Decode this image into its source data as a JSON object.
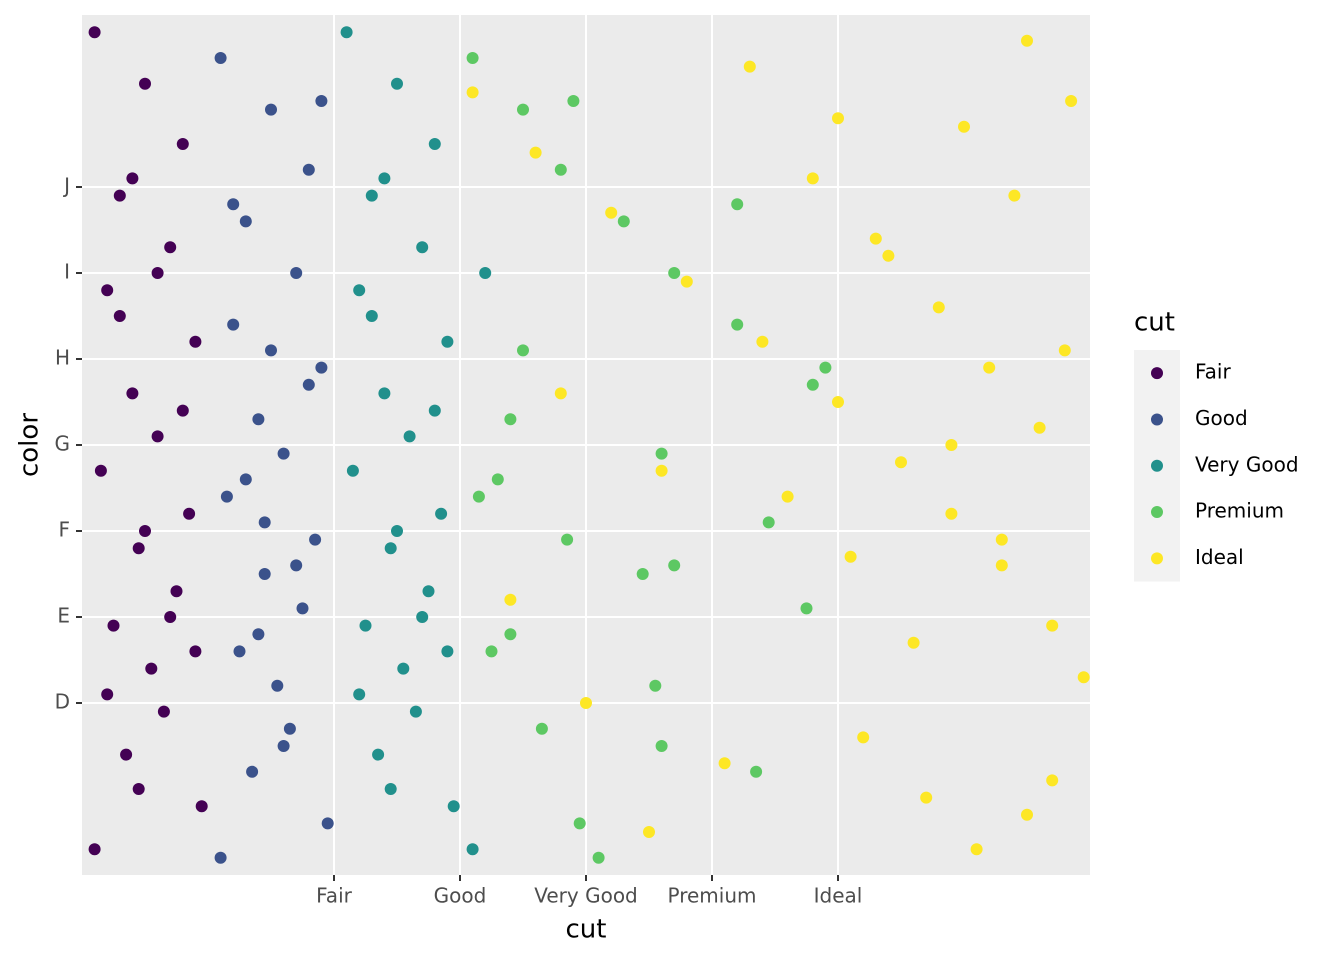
{
  "chart_data": {
    "type": "scatter",
    "x_label": "cut",
    "y_label": "color",
    "legend_title": "cut",
    "xlim": [
      -1,
      7
    ],
    "ylim": [
      -1,
      9
    ],
    "xticks": [
      {
        "value": 1,
        "label": "Fair"
      },
      {
        "value": 2,
        "label": "Good"
      },
      {
        "value": 3,
        "label": "Very Good"
      },
      {
        "value": 4,
        "label": "Premium"
      },
      {
        "value": 5,
        "label": "Ideal"
      }
    ],
    "yticks": [
      {
        "value": 1,
        "label": "D"
      },
      {
        "value": 2,
        "label": "E"
      },
      {
        "value": 3,
        "label": "F"
      },
      {
        "value": 4,
        "label": "G"
      },
      {
        "value": 5,
        "label": "H"
      },
      {
        "value": 6,
        "label": "I"
      },
      {
        "value": 7,
        "label": "J"
      }
    ],
    "grid": true,
    "legend": "right",
    "series": [
      {
        "name": "Fair",
        "color": "#440154",
        "x": [
          -0.9,
          -0.5,
          -0.2,
          -0.7,
          -0.3,
          -0.8,
          -0.1,
          -0.6,
          -0.4,
          -0.85,
          -0.15,
          -0.55,
          -0.25,
          -0.75,
          -0.45,
          -0.35,
          -0.65,
          -0.05,
          -0.9,
          -0.5,
          -0.2,
          -0.7,
          -0.3,
          -0.8,
          -0.6,
          -0.4,
          -0.1,
          -0.55
        ],
        "y": [
          8.8,
          8.2,
          7.5,
          6.9,
          6.3,
          5.8,
          5.2,
          4.6,
          4.1,
          3.7,
          3.2,
          2.8,
          2.3,
          1.9,
          1.4,
          0.9,
          0.4,
          -0.2,
          -0.7,
          3.0,
          4.4,
          5.5,
          2.0,
          1.1,
          7.1,
          6.0,
          1.6,
          0.0
        ]
      },
      {
        "name": "Good",
        "color": "#3b528b",
        "x": [
          0.1,
          0.5,
          0.8,
          0.3,
          0.7,
          0.2,
          0.9,
          0.4,
          0.6,
          0.15,
          0.85,
          0.45,
          0.75,
          0.25,
          0.55,
          0.65,
          0.35,
          0.95,
          0.1,
          0.5,
          0.8,
          0.3,
          0.7,
          0.2,
          0.4,
          0.6,
          0.9,
          0.45
        ],
        "y": [
          8.5,
          7.9,
          7.2,
          6.6,
          6.0,
          5.4,
          4.9,
          4.3,
          3.9,
          3.4,
          2.9,
          2.5,
          2.1,
          1.6,
          1.2,
          0.7,
          0.2,
          -0.4,
          -0.8,
          5.1,
          4.7,
          3.6,
          2.6,
          6.8,
          1.8,
          0.5,
          8.0,
          3.1
        ]
      },
      {
        "name": "Very Good",
        "color": "#21908c",
        "x": [
          1.1,
          1.5,
          1.8,
          1.3,
          1.7,
          1.2,
          1.9,
          1.4,
          1.6,
          1.15,
          1.85,
          1.45,
          1.75,
          1.25,
          1.55,
          1.65,
          1.35,
          1.95,
          2.1,
          1.5,
          1.8,
          1.3,
          1.7,
          1.2,
          1.4,
          2.2,
          1.9,
          1.45
        ],
        "y": [
          8.8,
          8.2,
          7.5,
          6.9,
          6.3,
          5.8,
          5.2,
          4.6,
          4.1,
          3.7,
          3.2,
          2.8,
          2.3,
          1.9,
          1.4,
          0.9,
          0.4,
          -0.2,
          -0.7,
          3.0,
          4.4,
          5.5,
          2.0,
          1.1,
          7.1,
          6.0,
          1.6,
          0.0
        ]
      },
      {
        "name": "Premium",
        "color": "#5dc863",
        "x": [
          2.1,
          2.5,
          2.8,
          3.3,
          3.7,
          4.2,
          4.9,
          2.4,
          3.6,
          2.15,
          2.85,
          3.45,
          4.75,
          2.25,
          3.55,
          2.65,
          4.35,
          2.95,
          3.1,
          2.5,
          4.8,
          2.3,
          3.7,
          4.2,
          2.4,
          3.6,
          2.9,
          4.45
        ],
        "y": [
          8.5,
          7.9,
          7.2,
          6.6,
          6.0,
          5.4,
          4.9,
          4.3,
          3.9,
          3.4,
          2.9,
          2.5,
          2.1,
          1.6,
          1.2,
          0.7,
          0.2,
          -0.4,
          -0.8,
          5.1,
          4.7,
          3.6,
          2.6,
          6.8,
          1.8,
          0.5,
          8.0,
          3.1
        ]
      },
      {
        "name": "Ideal",
        "color": "#fde725",
        "x": [
          2.1,
          2.6,
          3.2,
          3.8,
          4.4,
          5.0,
          5.5,
          5.9,
          6.3,
          6.7,
          6.95,
          5.2,
          5.7,
          6.1,
          6.5,
          6.85,
          4.8,
          5.3,
          5.8,
          6.2,
          6.6,
          2.4,
          3.0,
          3.5,
          4.1,
          4.6,
          5.1,
          5.6,
          6.0,
          6.4,
          6.8,
          5.4,
          5.9,
          6.3,
          6.7,
          2.8,
          3.6,
          4.3,
          5.0,
          6.5
        ],
        "y": [
          8.1,
          7.4,
          6.7,
          5.9,
          5.2,
          4.5,
          3.8,
          3.2,
          2.6,
          1.9,
          1.3,
          0.6,
          -0.1,
          -0.7,
          8.7,
          8.0,
          7.1,
          6.4,
          5.6,
          4.9,
          4.2,
          2.2,
          1.0,
          -0.5,
          0.3,
          3.4,
          2.7,
          1.7,
          7.7,
          6.9,
          5.1,
          6.2,
          4.0,
          2.9,
          0.1,
          4.6,
          3.7,
          8.4,
          7.8,
          -0.3
        ]
      }
    ]
  }
}
